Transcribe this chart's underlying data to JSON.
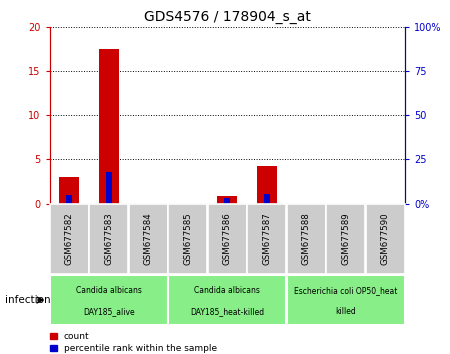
{
  "title": "GDS4576 / 178904_s_at",
  "samples": [
    "GSM677582",
    "GSM677583",
    "GSM677584",
    "GSM677585",
    "GSM677586",
    "GSM677587",
    "GSM677588",
    "GSM677589",
    "GSM677590"
  ],
  "count_values": [
    3.0,
    17.5,
    0.0,
    0.0,
    0.8,
    4.2,
    0.0,
    0.0,
    0.0
  ],
  "percentile_values": [
    5.0,
    18.0,
    0.0,
    0.0,
    3.0,
    5.5,
    0.0,
    0.0,
    0.0
  ],
  "ylim_left": [
    0,
    20
  ],
  "ylim_right": [
    0,
    100
  ],
  "yticks_left": [
    0,
    5,
    10,
    15,
    20
  ],
  "yticks_right": [
    0,
    25,
    50,
    75,
    100
  ],
  "yticklabels_left": [
    "0",
    "5",
    "10",
    "15",
    "20"
  ],
  "yticklabels_right": [
    "0%",
    "25",
    "50",
    "75",
    "100%"
  ],
  "bar_color_count": "#cc0000",
  "bar_color_percentile": "#0000cc",
  "bar_width": 0.5,
  "groups": [
    {
      "label": "Candida albicans\nDAY185_alive",
      "samples": [
        0,
        1,
        2
      ],
      "color": "#88ee88"
    },
    {
      "label": "Candida albicans\nDAY185_heat-killed",
      "samples": [
        3,
        4,
        5
      ],
      "color": "#88ee88"
    },
    {
      "label": "Escherichia coli OP50_heat\nkilled",
      "samples": [
        6,
        7,
        8
      ],
      "color": "#88ee88"
    }
  ],
  "factor_label": "infection",
  "legend_count_label": "count",
  "legend_percentile_label": "percentile rank within the sample",
  "sample_box_color": "#cccccc",
  "bg_color": "#ffffff"
}
